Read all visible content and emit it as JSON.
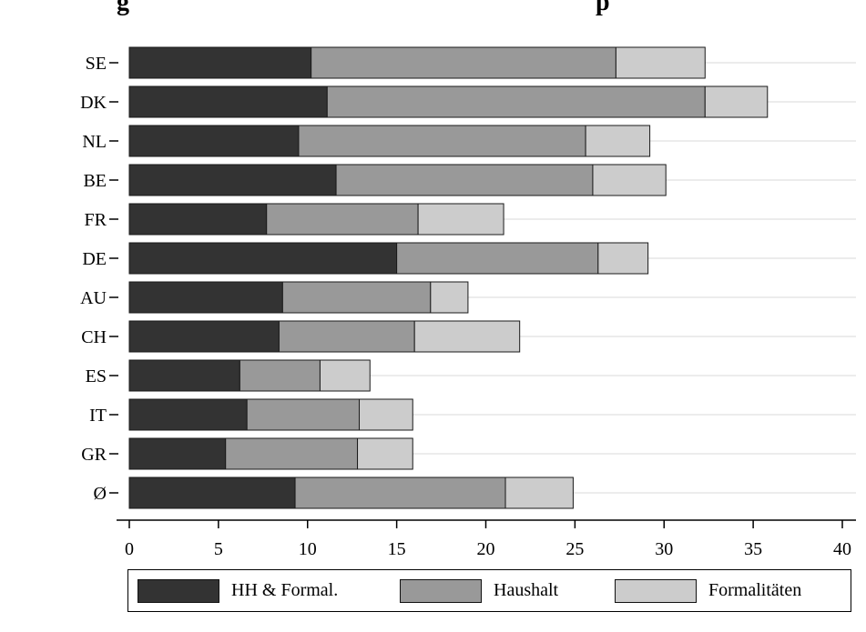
{
  "title": "g",
  "title_right": "p",
  "chart_data": {
    "type": "bar",
    "orientation": "horizontal",
    "stacked": true,
    "categories": [
      "SE",
      "DK",
      "NL",
      "BE",
      "FR",
      "DE",
      "AU",
      "CH",
      "ES",
      "IT",
      "GR",
      "Ø"
    ],
    "series": [
      {
        "name": "HH & Formal.",
        "color": "#333333",
        "values": [
          10.2,
          11.1,
          9.5,
          11.6,
          7.7,
          15.0,
          8.6,
          8.4,
          6.2,
          6.6,
          5.4,
          9.3
        ]
      },
      {
        "name": "Haushalt",
        "color": "#999999",
        "values": [
          17.1,
          21.2,
          16.1,
          14.4,
          8.5,
          11.3,
          8.3,
          7.6,
          4.5,
          6.3,
          7.4,
          11.8
        ]
      },
      {
        "name": "Formalitäten",
        "color": "#cccccc",
        "values": [
          5.0,
          3.5,
          3.6,
          4.1,
          4.8,
          2.8,
          2.1,
          5.9,
          2.8,
          3.0,
          3.1,
          3.8
        ]
      }
    ],
    "xlim": [
      0,
      40
    ],
    "x_ticks": [
      "0",
      "5",
      "10",
      "15",
      "20",
      "25",
      "30",
      "35",
      "40"
    ],
    "grid": "horizontal",
    "legend_position": "bottom",
    "xlabel": "",
    "ylabel": ""
  }
}
